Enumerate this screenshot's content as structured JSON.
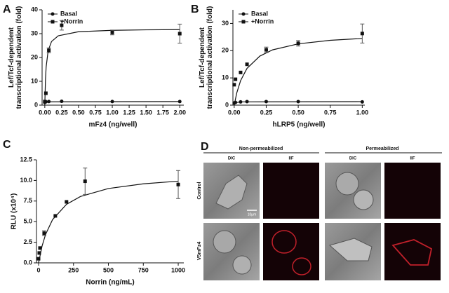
{
  "chart_data": [
    {
      "type": "scatter",
      "panel": "A",
      "x_label": "mFz4 (ng/well)",
      "y_label": [
        "Lef/Tcf-dependent",
        "transcriptional activation (fold)"
      ],
      "xlim": [
        -0.04,
        2.06
      ],
      "ylim": [
        0,
        40
      ],
      "xticks": [
        {
          "value": 0,
          "label": "0.00"
        },
        {
          "value": 0.25,
          "label": "0.25"
        },
        {
          "value": 0.5,
          "label": "0.50"
        },
        {
          "value": 0.75,
          "label": "0.75"
        },
        {
          "value": 1,
          "label": "1.00"
        },
        {
          "value": 1.25,
          "label": "1.25"
        },
        {
          "value": 1.5,
          "label": "1.50"
        },
        {
          "value": 1.75,
          "label": "1.75"
        },
        {
          "value": 2,
          "label": "2.00"
        }
      ],
      "yticks": [
        0,
        10,
        20,
        30,
        40
      ],
      "legend": "upper left",
      "series": [
        {
          "name": "Basal",
          "marker": "circle",
          "color": "#111111",
          "x": [
            0,
            0.016,
            0.06,
            0.25,
            1,
            2
          ],
          "values": [
            1.2,
            1.4,
            1.5,
            1.6,
            1.5,
            1.5
          ],
          "errors": [
            null,
            null,
            null,
            null,
            null,
            null
          ],
          "fit": {
            "x": [
              0,
              0.05,
              2
            ],
            "values": [
              0.9,
              1.4,
              1.5
            ]
          }
        },
        {
          "name": "+Norrin",
          "marker": "square",
          "color": "#111111",
          "x": [
            0,
            0.016,
            0.06,
            0.25,
            1,
            2
          ],
          "values": [
            1.5,
            5,
            23,
            33.5,
            30.5,
            30
          ],
          "errors": [
            null,
            null,
            1,
            2,
            1,
            4
          ],
          "fit": {
            "x": [
              0,
              0.01,
              0.02,
              0.05,
              0.1,
              0.2,
              0.5,
              1,
              1.5,
              2
            ],
            "values": [
              0,
              10.7,
              16,
              22.9,
              26.7,
              29.1,
              30.8,
              31.4,
              31.6,
              31.7
            ]
          }
        }
      ]
    },
    {
      "type": "scatter",
      "panel": "B",
      "x_label": "hLRP5 (ng/well)",
      "y_label": [
        "Lef/Tcf-dependent",
        "transcriptional activation (fold)"
      ],
      "xlim": [
        -0.01,
        1.02
      ],
      "ylim": [
        0,
        35
      ],
      "xticks": [
        {
          "value": 0,
          "label": "0.00"
        },
        {
          "value": 0.25,
          "label": "0.25"
        },
        {
          "value": 0.5,
          "label": "0.50"
        },
        {
          "value": 0.75,
          "label": "0.75"
        },
        {
          "value": 1,
          "label": "1.00"
        }
      ],
      "yticks": [
        0,
        10,
        20,
        30
      ],
      "legend": "upper left",
      "series": [
        {
          "name": "Basal",
          "marker": "circle",
          "color": "#111111",
          "x": [
            0,
            0.01,
            0.05,
            0.1,
            0.25,
            0.5,
            1
          ],
          "values": [
            0.8,
            1,
            1.2,
            1.3,
            1.3,
            1.3,
            1.2
          ],
          "errors": [
            null,
            null,
            null,
            null,
            null,
            null,
            null
          ],
          "fit": {
            "x": [
              0,
              0.05,
              1
            ],
            "values": [
              0.8,
              1.2,
              1.3
            ]
          }
        },
        {
          "name": "+Norrin",
          "marker": "square",
          "color": "#111111",
          "x": [
            0,
            0.01,
            0.05,
            0.1,
            0.25,
            0.5,
            1
          ],
          "values": [
            7.5,
            9.5,
            12,
            15,
            20.3,
            22.7,
            26.3
          ],
          "errors": [
            null,
            null,
            null,
            null,
            1,
            1,
            3.5
          ],
          "fit": {
            "x": [
              0,
              0.02,
              0.05,
              0.1,
              0.2,
              0.3,
              0.5,
              0.75,
              1
            ],
            "values": [
              0,
              4.5,
              9,
              13.5,
              18,
              20.3,
              22.5,
              23.8,
              24.5
            ]
          }
        }
      ]
    },
    {
      "type": "scatter",
      "panel": "C",
      "x_label": "Norrin (ng/mL)",
      "y_label": [
        "RLU (x10⁴)"
      ],
      "xlim": [
        -15,
        1040
      ],
      "ylim": [
        0,
        12.5
      ],
      "xticks": [
        0,
        250,
        500,
        750,
        1000
      ],
      "yticks": [
        {
          "value": 0,
          "label": "0.0"
        },
        2.5,
        {
          "value": 5,
          "label": "5.0"
        },
        7.5,
        {
          "value": 10,
          "label": "10.0"
        },
        12.5
      ],
      "marker": "square",
      "color": "#111111",
      "x": [
        0,
        5,
        10,
        40,
        120,
        200,
        333,
        1000
      ],
      "values": [
        0.5,
        1.2,
        1.8,
        3.6,
        5.7,
        7.4,
        9.9,
        9.5
      ],
      "errors": [
        null,
        null,
        null,
        0.3,
        null,
        null,
        1.6,
        1.7
      ],
      "fit": {
        "x": [
          0,
          25,
          50,
          100,
          200,
          300,
          500,
          750,
          1000
        ],
        "values": [
          0,
          2.04,
          3.44,
          5.24,
          7.1,
          8.05,
          9.02,
          9.59,
          9.91
        ]
      }
    }
  ],
  "panel_d": {
    "label": "D",
    "groups": [
      "Non-permeabilized",
      "Permeabilized"
    ],
    "columns": [
      "DIC",
      "IIF",
      "DIC",
      "IIF"
    ],
    "rows": [
      "Control",
      "V5mFz4"
    ],
    "scale_bar": "10μm"
  }
}
